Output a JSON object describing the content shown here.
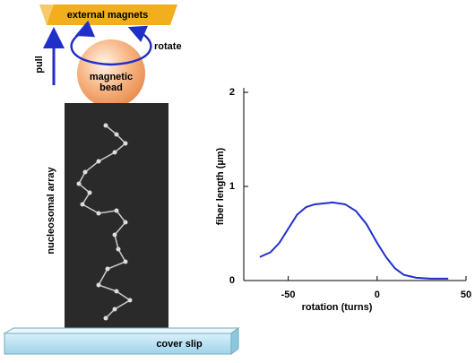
{
  "labels": {
    "magnets": "external magnets",
    "rotate": "rotate",
    "pull": "pull",
    "bead": [
      "magnetic",
      "bead"
    ],
    "array": "nucleosomal array",
    "slip": "cover slip"
  },
  "chart_data": {
    "type": "line",
    "x_label": "rotation (turns)",
    "y_label": "fiber length (µm)",
    "x": [
      -66,
      -60,
      -55,
      -50,
      -45,
      -40,
      -35,
      -25,
      -18,
      -12,
      -6,
      0,
      5,
      10,
      15,
      22,
      30,
      40
    ],
    "values": [
      0.25,
      0.3,
      0.4,
      0.55,
      0.7,
      0.78,
      0.81,
      0.83,
      0.81,
      0.74,
      0.6,
      0.4,
      0.25,
      0.13,
      0.06,
      0.03,
      0.02,
      0.02
    ],
    "color": "#1f2fc8",
    "xlim": [
      -75,
      50
    ],
    "xticks": [
      -50,
      0,
      50
    ],
    "ylim": [
      0,
      2
    ],
    "yticks": [
      0,
      1,
      2
    ]
  }
}
